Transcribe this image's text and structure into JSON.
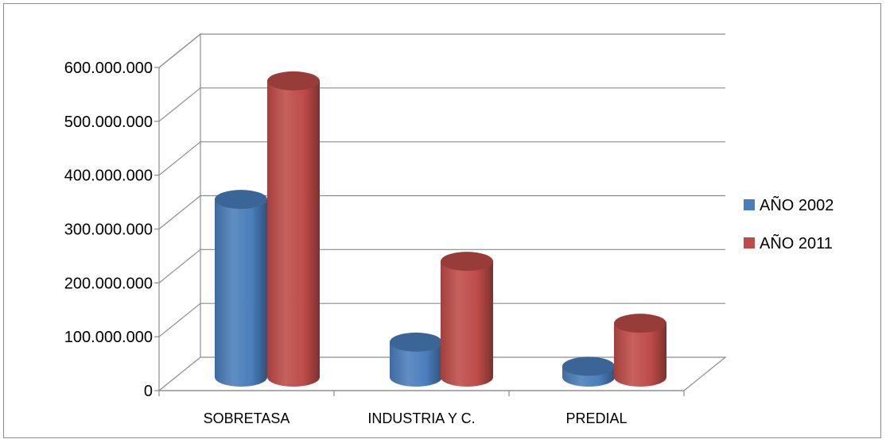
{
  "chart_data": {
    "type": "bar",
    "style": "3d-cylinder",
    "categories": [
      "SOBRETASA",
      "INDUSTRIA Y C.",
      "PREDIAL"
    ],
    "series": [
      {
        "name": "AÑO 2002",
        "color": "#4a7ebb",
        "values": [
          330000000,
          65000000,
          20000000
        ]
      },
      {
        "name": "AÑO 2011",
        "color": "#be4b48",
        "values": [
          550000000,
          215000000,
          100000000
        ]
      }
    ],
    "y_ticks": [
      "0",
      "100.000.000",
      "200.000.000",
      "300.000.000",
      "400.000.000",
      "500.000.000",
      "600.000.000"
    ],
    "ylim": [
      0,
      600000000
    ],
    "title": "",
    "xlabel": "",
    "ylabel": "",
    "grid": true,
    "legend_position": "right"
  }
}
